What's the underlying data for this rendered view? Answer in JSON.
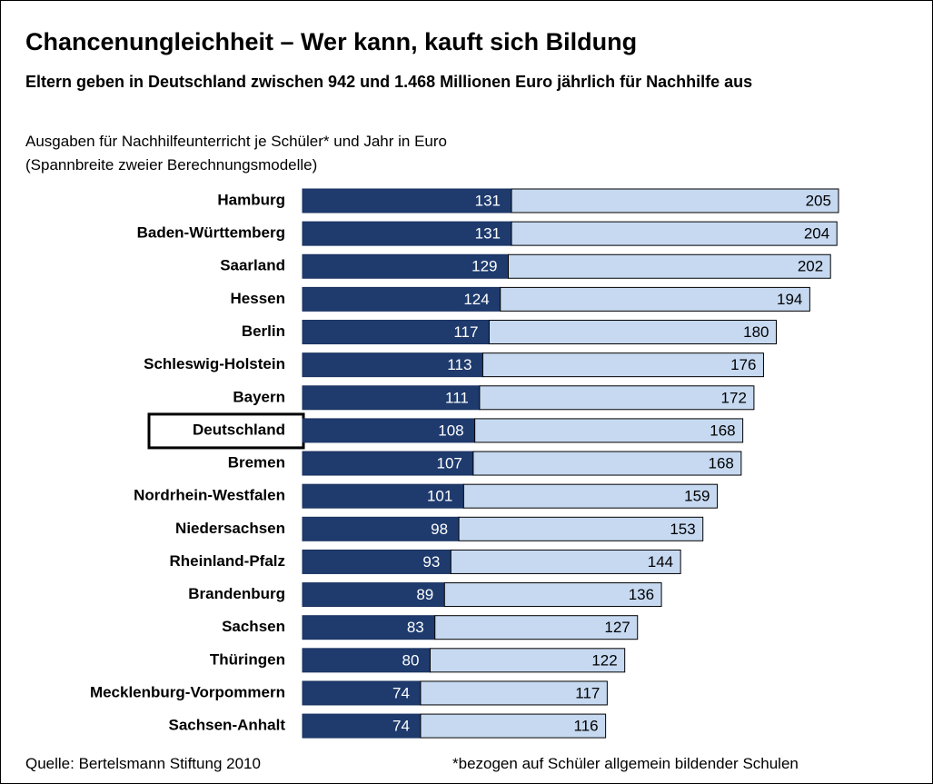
{
  "chart_data": {
    "type": "stacked-barh",
    "title": "Chancenungleichheit – Wer kann, kauft sich Bildung",
    "subtitle": "Eltern geben in Deutschland zwischen 942 und 1.468 Millionen Euro jährlich für Nachhilfe aus",
    "description": [
      "Ausgaben für Nachhilfeunterricht je Schüler*  und  Jahr in Euro",
      "(Spannbreite zweier Berechnungsmodelle)"
    ],
    "categories": [
      "Hamburg",
      "Baden-Württemberg",
      "Saarland",
      "Hessen",
      "Berlin",
      "Schleswig-Holstein",
      "Bayern",
      "Deutschland",
      "Bremen",
      "Nordrhein-Westfalen",
      "Niedersachsen",
      "Rheinland-Pfalz",
      "Brandenburg",
      "Sachsen",
      "Thüringen",
      "Mecklenburg-Vorpommern",
      "Sachsen-Anhalt"
    ],
    "highlight": "Deutschland",
    "series": [
      {
        "color": "#1f3b6e",
        "values": [
          131,
          131,
          129,
          124,
          117,
          113,
          111,
          108,
          107,
          101,
          98,
          93,
          89,
          83,
          80,
          74,
          74
        ]
      },
      {
        "color": "#c6d9f1",
        "values": [
          205,
          204,
          202,
          194,
          180,
          176,
          172,
          168,
          168,
          159,
          153,
          144,
          136,
          127,
          122,
          117,
          116
        ]
      }
    ],
    "xlim": [
      0,
      340
    ],
    "source": "Quelle: Bertelsmann Stiftung 2010",
    "note": "*bezogen auf Schüler allgemein bildender Schulen"
  }
}
